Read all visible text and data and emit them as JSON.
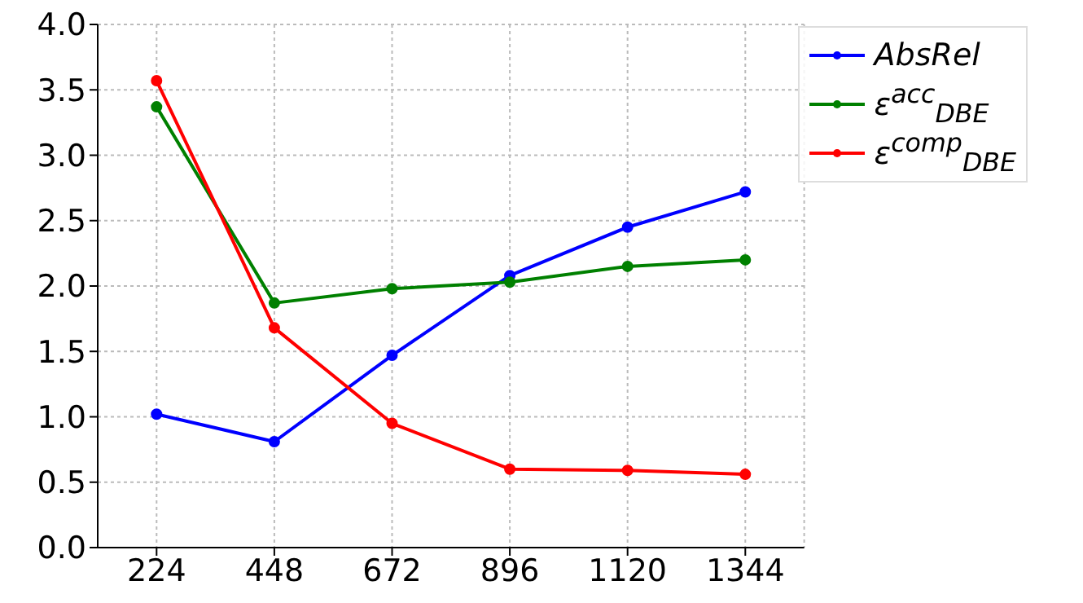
{
  "chart_data": {
    "type": "line",
    "x": [
      224,
      448,
      672,
      896,
      1120,
      1344
    ],
    "series": [
      {
        "name": "AbsRel",
        "color": "#0000ff",
        "values": [
          1.02,
          0.81,
          1.47,
          2.08,
          2.45,
          2.72
        ]
      },
      {
        "name": "ε$^{acc}$$_{DBE}$",
        "color": "#008000",
        "values": [
          3.37,
          1.87,
          1.98,
          2.03,
          2.15,
          2.2
        ]
      },
      {
        "name": "ε$^{comp}$$_{DBE}$",
        "color": "#ff0000",
        "values": [
          3.57,
          1.68,
          0.95,
          0.6,
          0.59,
          0.56
        ]
      }
    ],
    "xlim": [
      112,
      1456
    ],
    "xticks": [
      224,
      448,
      672,
      896,
      1120,
      1344
    ],
    "ylim": [
      0,
      4
    ],
    "yticks": [
      {
        "value": 0,
        "label": "0.0"
      },
      {
        "value": 0.5,
        "label": "0.5"
      },
      {
        "value": 1,
        "label": "1.0"
      },
      {
        "value": 1.5,
        "label": "1.5"
      },
      {
        "value": 2,
        "label": "2.0"
      },
      {
        "value": 2.5,
        "label": "2.5"
      },
      {
        "value": 3,
        "label": "3.0"
      },
      {
        "value": 3.5,
        "label": "3.5"
      },
      {
        "value": 4,
        "label": "4.0"
      }
    ],
    "grid": true,
    "legend": "top right",
    "marker": "circle",
    "line_style": "solid"
  }
}
